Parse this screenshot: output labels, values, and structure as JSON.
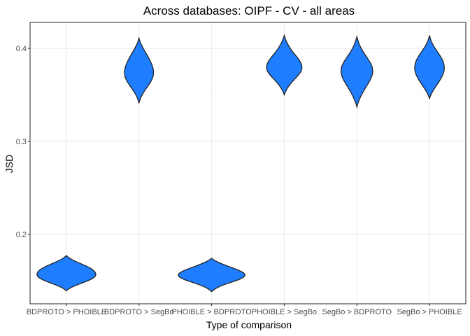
{
  "chart_data": {
    "type": "violin",
    "title": "Across databases: OIPF - CV - all areas",
    "xlabel": "Type of comparison",
    "ylabel": "JSD",
    "ylim": [
      0.125,
      0.428
    ],
    "yticks": [
      0.2,
      0.3,
      0.4
    ],
    "ytick_labels": [
      "0.2",
      "0.3",
      "0.4"
    ],
    "fill_color": "#1e7eff",
    "outline_color": "#222222",
    "grid": true,
    "categories": [
      "BDPROTO > PHOIBLE",
      "BDPROTO > SegBo",
      "PHOIBLE > BDPROTO",
      "PHOIBLE > SegBo",
      "SegBo > BDPROTO",
      "SegBo > PHOIBLE"
    ],
    "violins": [
      {
        "category": "BDPROTO > PHOIBLE",
        "min": 0.139,
        "max": 0.177,
        "mode": 0.157,
        "max_width": 0.86
      },
      {
        "category": "BDPROTO > SegBo",
        "min": 0.341,
        "max": 0.411,
        "mode": 0.376,
        "max_width": 0.41
      },
      {
        "category": "PHOIBLE > BDPROTO",
        "min": 0.138,
        "max": 0.174,
        "mode": 0.157,
        "max_width": 0.9
      },
      {
        "category": "PHOIBLE > SegBo",
        "min": 0.35,
        "max": 0.414,
        "mode": 0.379,
        "max_width": 0.46
      },
      {
        "category": "SegBo > BDPROTO",
        "min": 0.337,
        "max": 0.413,
        "mode": 0.374,
        "max_width": 0.42
      },
      {
        "category": "SegBo > PHOIBLE",
        "min": 0.346,
        "max": 0.414,
        "mode": 0.377,
        "max_width": 0.42
      }
    ]
  }
}
